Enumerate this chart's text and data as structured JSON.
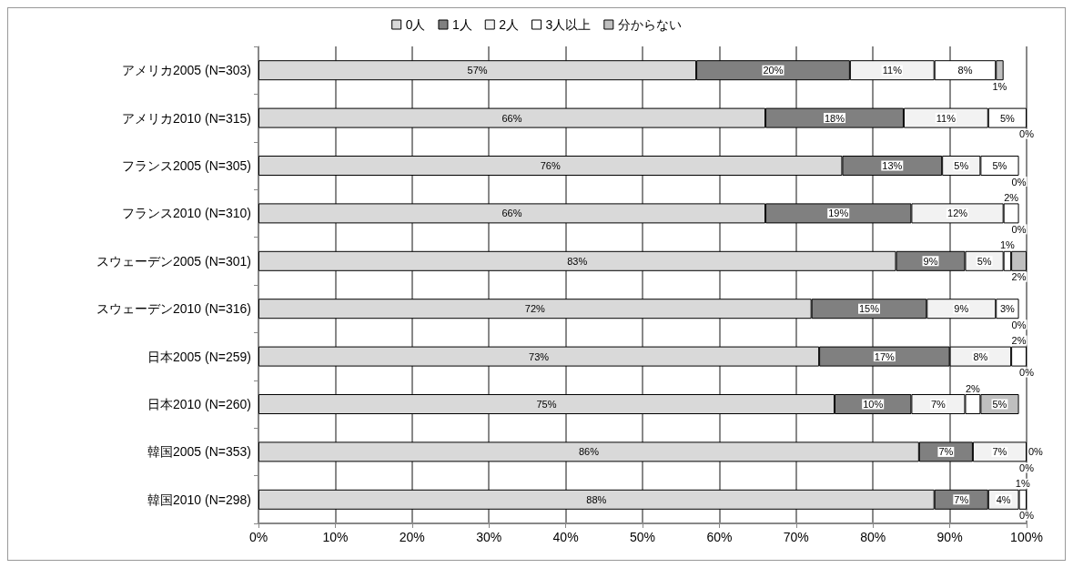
{
  "chart_data": {
    "type": "bar",
    "orientation": "horizontal",
    "stacked": true,
    "legend": "top",
    "grid": "x",
    "categories": [
      "アメリカ2005 (N=303)",
      "アメリカ2010 (N=315)",
      "フランス2005 (N=305)",
      "フランス2010 (N=310)",
      "スウェーデン2005 (N=301)",
      "スウェーデン2010 (N=316)",
      "日本2005 (N=259)",
      "日本2010 (N=260)",
      "韓国2005 (N=353)",
      "韓国2010 (N=298)"
    ],
    "xlim": [
      0,
      100
    ],
    "xticks": [
      {
        "value": 0,
        "label": "0%"
      },
      {
        "value": 10,
        "label": "10%"
      },
      {
        "value": 20,
        "label": "20%"
      },
      {
        "value": 30,
        "label": "30%"
      },
      {
        "value": 40,
        "label": "40%"
      },
      {
        "value": 50,
        "label": "50%"
      },
      {
        "value": 60,
        "label": "60%"
      },
      {
        "value": 70,
        "label": "70%"
      },
      {
        "value": 80,
        "label": "80%"
      },
      {
        "value": 90,
        "label": "90%"
      },
      {
        "value": 100,
        "label": "100%"
      }
    ],
    "series": [
      {
        "name": "0人",
        "color": "#d9d9d9",
        "values": [
          57,
          66,
          76,
          66,
          83,
          72,
          73,
          75,
          86,
          88
        ],
        "value_labels": [
          "57%",
          "66%",
          "76%",
          "66%",
          "83%",
          "72%",
          "73%",
          "75%",
          "86%",
          "88%"
        ]
      },
      {
        "name": "1人",
        "color": "#808080",
        "values": [
          20,
          18,
          13,
          19,
          9,
          15,
          17,
          10,
          7,
          7
        ],
        "value_labels": [
          "20%",
          "18%",
          "13%",
          "19%",
          "9%",
          "15%",
          "17%",
          "10%",
          "7%",
          "7%"
        ]
      },
      {
        "name": "2人",
        "color": "#f2f2f2",
        "values": [
          11,
          11,
          5,
          12,
          5,
          9,
          8,
          7,
          7,
          4
        ],
        "value_labels": [
          "11%",
          "11%",
          "5%",
          "12%",
          "5%",
          "9%",
          "8%",
          "7%",
          "7%",
          "4%"
        ]
      },
      {
        "name": "3人以上",
        "color": "#ffffff",
        "values": [
          8,
          5,
          5,
          2,
          1,
          3,
          2,
          2,
          0,
          1
        ],
        "value_labels": [
          "8%",
          "5%",
          "5%",
          "2%",
          "1%",
          "3%",
          "2%",
          "2%",
          "0%",
          "1%"
        ]
      },
      {
        "name": "分からない",
        "color": "#bfbfbf",
        "values": [
          1,
          0,
          0,
          0,
          2,
          0,
          0,
          5,
          0,
          0
        ],
        "value_labels": [
          "1%",
          "0%",
          "0%",
          "0%",
          "2%",
          "0%",
          "0%",
          "5%",
          "0%",
          "0%"
        ]
      }
    ]
  }
}
